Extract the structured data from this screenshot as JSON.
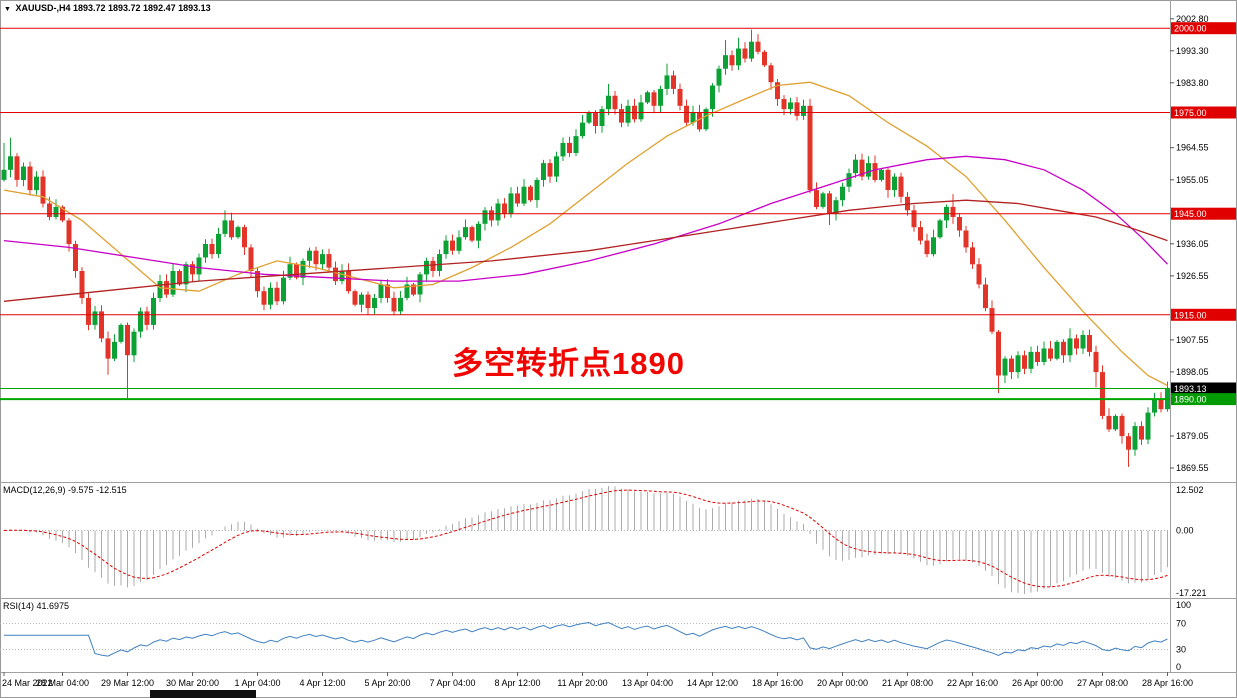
{
  "header": {
    "dropdown_icon": "▼",
    "symbol": "XAUUSD-,H4",
    "quote": "1893.72 1893.72 1892.47 1893.13"
  },
  "annotation": {
    "text": "多空转折点1890",
    "color": "#f00500"
  },
  "macd_panel": {
    "title": "MACD(12,26,9)",
    "macd_value": "-9.575",
    "signal_value": "-12.515",
    "axis": [
      "12.502",
      "0.00",
      "-17.221"
    ],
    "histogram_color": "#ababab",
    "signal_color": "#e00000"
  },
  "rsi_panel": {
    "title": "RSI(14)",
    "value": "41.6975",
    "axis": [
      "100",
      "70",
      "30",
      "0"
    ],
    "levels": [
      70,
      30
    ],
    "line_color": "#4080c0"
  },
  "chart_data": {
    "type": "candlestick",
    "symbol": "XAUUSD-",
    "timeframe": "H4",
    "y_axis": {
      "min": 1866,
      "max": 2006,
      "labels": [
        "2002.80",
        "1993.30",
        "1983.80",
        "1964.55",
        "1955.05",
        "1936.05",
        "1926.55",
        "1907.55",
        "1898.05",
        "1879.05",
        "1869.55"
      ]
    },
    "first_open": 1955,
    "closes": [
      1958,
      1962,
      1955,
      1959,
      1952,
      1956,
      1948,
      1944,
      1947,
      1943,
      1936,
      1928,
      1920,
      1912,
      1916,
      1908,
      1902,
      1907,
      1912,
      1903,
      1910,
      1916,
      1912,
      1920,
      1925,
      1921,
      1928,
      1924,
      1930,
      1927,
      1932,
      1936,
      1933,
      1939,
      1943,
      1938,
      1941,
      1935,
      1928,
      1922,
      1918,
      1923,
      1919,
      1926,
      1930,
      1926,
      1931,
      1934,
      1930,
      1933,
      1929,
      1925,
      1928,
      1922,
      1918,
      1921,
      1917,
      1920,
      1924,
      1920,
      1916,
      1920,
      1924,
      1921,
      1927,
      1931,
      1928,
      1933,
      1937,
      1934,
      1938,
      1941,
      1937,
      1942,
      1946,
      1943,
      1948,
      1945,
      1951,
      1948,
      1953,
      1949,
      1955,
      1960,
      1956,
      1962,
      1966,
      1963,
      1968,
      1972,
      1975,
      1971,
      1976,
      1980,
      1976,
      1972,
      1977,
      1973,
      1978,
      1981,
      1977,
      1982,
      1986,
      1982,
      1977,
      1972,
      1975,
      1970,
      1976,
      1983,
      1988,
      1992,
      1989,
      1994,
      1991,
      1996,
      1993,
      1989,
      1984,
      1979,
      1976,
      1978,
      1974,
      1977,
      1952,
      1947,
      1951,
      1945,
      1949,
      1953,
      1957,
      1961,
      1956,
      1960,
      1955,
      1958,
      1952,
      1956,
      1950,
      1946,
      1941,
      1937,
      1933,
      1938,
      1943,
      1947,
      1944,
      1940,
      1935,
      1930,
      1924,
      1917,
      1910,
      1897,
      1902,
      1898,
      1903,
      1899,
      1904,
      1901,
      1905,
      1902,
      1907,
      1903,
      1908,
      1905,
      1909,
      1904,
      1898,
      1885,
      1881,
      1885,
      1879,
      1875,
      1882,
      1878,
      1886,
      1890,
      1887,
      1893.13
    ],
    "wick_hi": {
      "0": 1966,
      "1": 1967.5,
      "34": 1946,
      "93": 1983.5,
      "102": 1989.5,
      "111": 1996.5,
      "113": 1997.2,
      "115": 1999.6,
      "146": 1950.8,
      "164": 1911,
      "179": 1895.2
    },
    "wick_lo": {
      "16": 1897.2,
      "19": 1890.3,
      "127": 1941.6,
      "153": 1891.8,
      "168": 1893.5,
      "173": 1869.9
    },
    "up_color": "#0ca134",
    "down_color": "#e3342a",
    "moving_averages": [
      {
        "name": "fast-ma",
        "color": "#e0a030",
        "points": [
          [
            0,
            1952
          ],
          [
            6,
            1950
          ],
          [
            12,
            1943
          ],
          [
            18,
            1933
          ],
          [
            24,
            1923
          ],
          [
            30,
            1922
          ],
          [
            36,
            1927
          ],
          [
            42,
            1931
          ],
          [
            48,
            1929
          ],
          [
            54,
            1926
          ],
          [
            60,
            1923
          ],
          [
            66,
            1924
          ],
          [
            72,
            1929
          ],
          [
            78,
            1935
          ],
          [
            84,
            1942
          ],
          [
            90,
            1951
          ],
          [
            96,
            1960
          ],
          [
            102,
            1968
          ],
          [
            108,
            1974
          ],
          [
            114,
            1979
          ],
          [
            119,
            1983
          ],
          [
            124,
            1984
          ],
          [
            130,
            1980
          ],
          [
            136,
            1972
          ],
          [
            142,
            1965
          ],
          [
            148,
            1956
          ],
          [
            154,
            1943
          ],
          [
            160,
            1929
          ],
          [
            166,
            1916
          ],
          [
            172,
            1904
          ],
          [
            176,
            1897
          ],
          [
            179,
            1894
          ]
        ]
      },
      {
        "name": "mid-ma",
        "color": "#c800c8",
        "points": [
          [
            0,
            1937
          ],
          [
            10,
            1935
          ],
          [
            20,
            1932
          ],
          [
            30,
            1929
          ],
          [
            40,
            1927
          ],
          [
            50,
            1926
          ],
          [
            60,
            1925
          ],
          [
            70,
            1925
          ],
          [
            80,
            1927
          ],
          [
            90,
            1931
          ],
          [
            100,
            1936
          ],
          [
            110,
            1942
          ],
          [
            118,
            1948
          ],
          [
            126,
            1953
          ],
          [
            134,
            1958
          ],
          [
            142,
            1961
          ],
          [
            148,
            1962
          ],
          [
            154,
            1961
          ],
          [
            160,
            1958
          ],
          [
            166,
            1952
          ],
          [
            171,
            1945
          ],
          [
            175,
            1938
          ],
          [
            179,
            1930
          ]
        ]
      },
      {
        "name": "slow-ma",
        "color": "#b22222",
        "points": [
          [
            0,
            1919
          ],
          [
            15,
            1922
          ],
          [
            30,
            1925
          ],
          [
            45,
            1927
          ],
          [
            60,
            1929
          ],
          [
            75,
            1931
          ],
          [
            90,
            1934
          ],
          [
            100,
            1937
          ],
          [
            110,
            1940
          ],
          [
            120,
            1943
          ],
          [
            130,
            1946
          ],
          [
            140,
            1948
          ],
          [
            148,
            1949
          ],
          [
            156,
            1948
          ],
          [
            162,
            1946
          ],
          [
            168,
            1944
          ],
          [
            173,
            1941
          ],
          [
            179,
            1937
          ]
        ]
      }
    ],
    "horizontal_levels": [
      {
        "price": 2000.0,
        "label": "2000.00",
        "color": "#e00000",
        "width": 1,
        "flag_bg": "#e00000"
      },
      {
        "price": 1975.0,
        "label": "1975.00",
        "color": "#e00000",
        "width": 1,
        "flag_bg": "#e00000"
      },
      {
        "price": 1945.0,
        "label": "1945.00",
        "color": "#e00000",
        "width": 1,
        "flag_bg": "#e00000"
      },
      {
        "price": 1915.0,
        "label": "1915.00",
        "color": "#e00000",
        "width": 1,
        "flag_bg": "#e00000"
      },
      {
        "price": 1893.13,
        "label": "1893.13",
        "color": "#00a500",
        "width": 1,
        "flag_bg": "#000000"
      },
      {
        "price": 1890.0,
        "label": "1890.00",
        "color": "#00a500",
        "width": 2,
        "flag_bg": "#009b00"
      }
    ],
    "indicators": {
      "macd": {
        "fast": 12,
        "slow": 26,
        "signal": 9,
        "last_macd": -9.575,
        "last_signal": -12.515,
        "scale_max": 12.502,
        "scale_min": -17.221
      },
      "rsi": {
        "period": 14,
        "last": 41.6975,
        "levels": [
          70,
          30
        ]
      }
    },
    "x_labels": [
      {
        "i": 0,
        "t": "24 Mar 2022"
      },
      {
        "i": 9,
        "t": "28 Mar 04:00"
      },
      {
        "i": 19,
        "t": "29 Mar 12:00"
      },
      {
        "i": 29,
        "t": "30 Mar 20:00"
      },
      {
        "i": 39,
        "t": "1 Apr 04:00"
      },
      {
        "i": 49,
        "t": "4 Apr 12:00"
      },
      {
        "i": 59,
        "t": "5 Apr 20:00"
      },
      {
        "i": 69,
        "t": "7 Apr 04:00"
      },
      {
        "i": 79,
        "t": "8 Apr 12:00"
      },
      {
        "i": 89,
        "t": "11 Apr 20:00"
      },
      {
        "i": 99,
        "t": "13 Apr 04:00"
      },
      {
        "i": 109,
        "t": "14 Apr 12:00"
      },
      {
        "i": 119,
        "t": "18 Apr 16:00"
      },
      {
        "i": 129,
        "t": "20 Apr 00:00"
      },
      {
        "i": 139,
        "t": "21 Apr 08:00"
      },
      {
        "i": 149,
        "t": "22 Apr 16:00"
      },
      {
        "i": 159,
        "t": "26 Apr 00:00"
      },
      {
        "i": 169,
        "t": "27 Apr 08:00"
      },
      {
        "i": 179,
        "t": "28 Apr 16:00"
      }
    ]
  }
}
